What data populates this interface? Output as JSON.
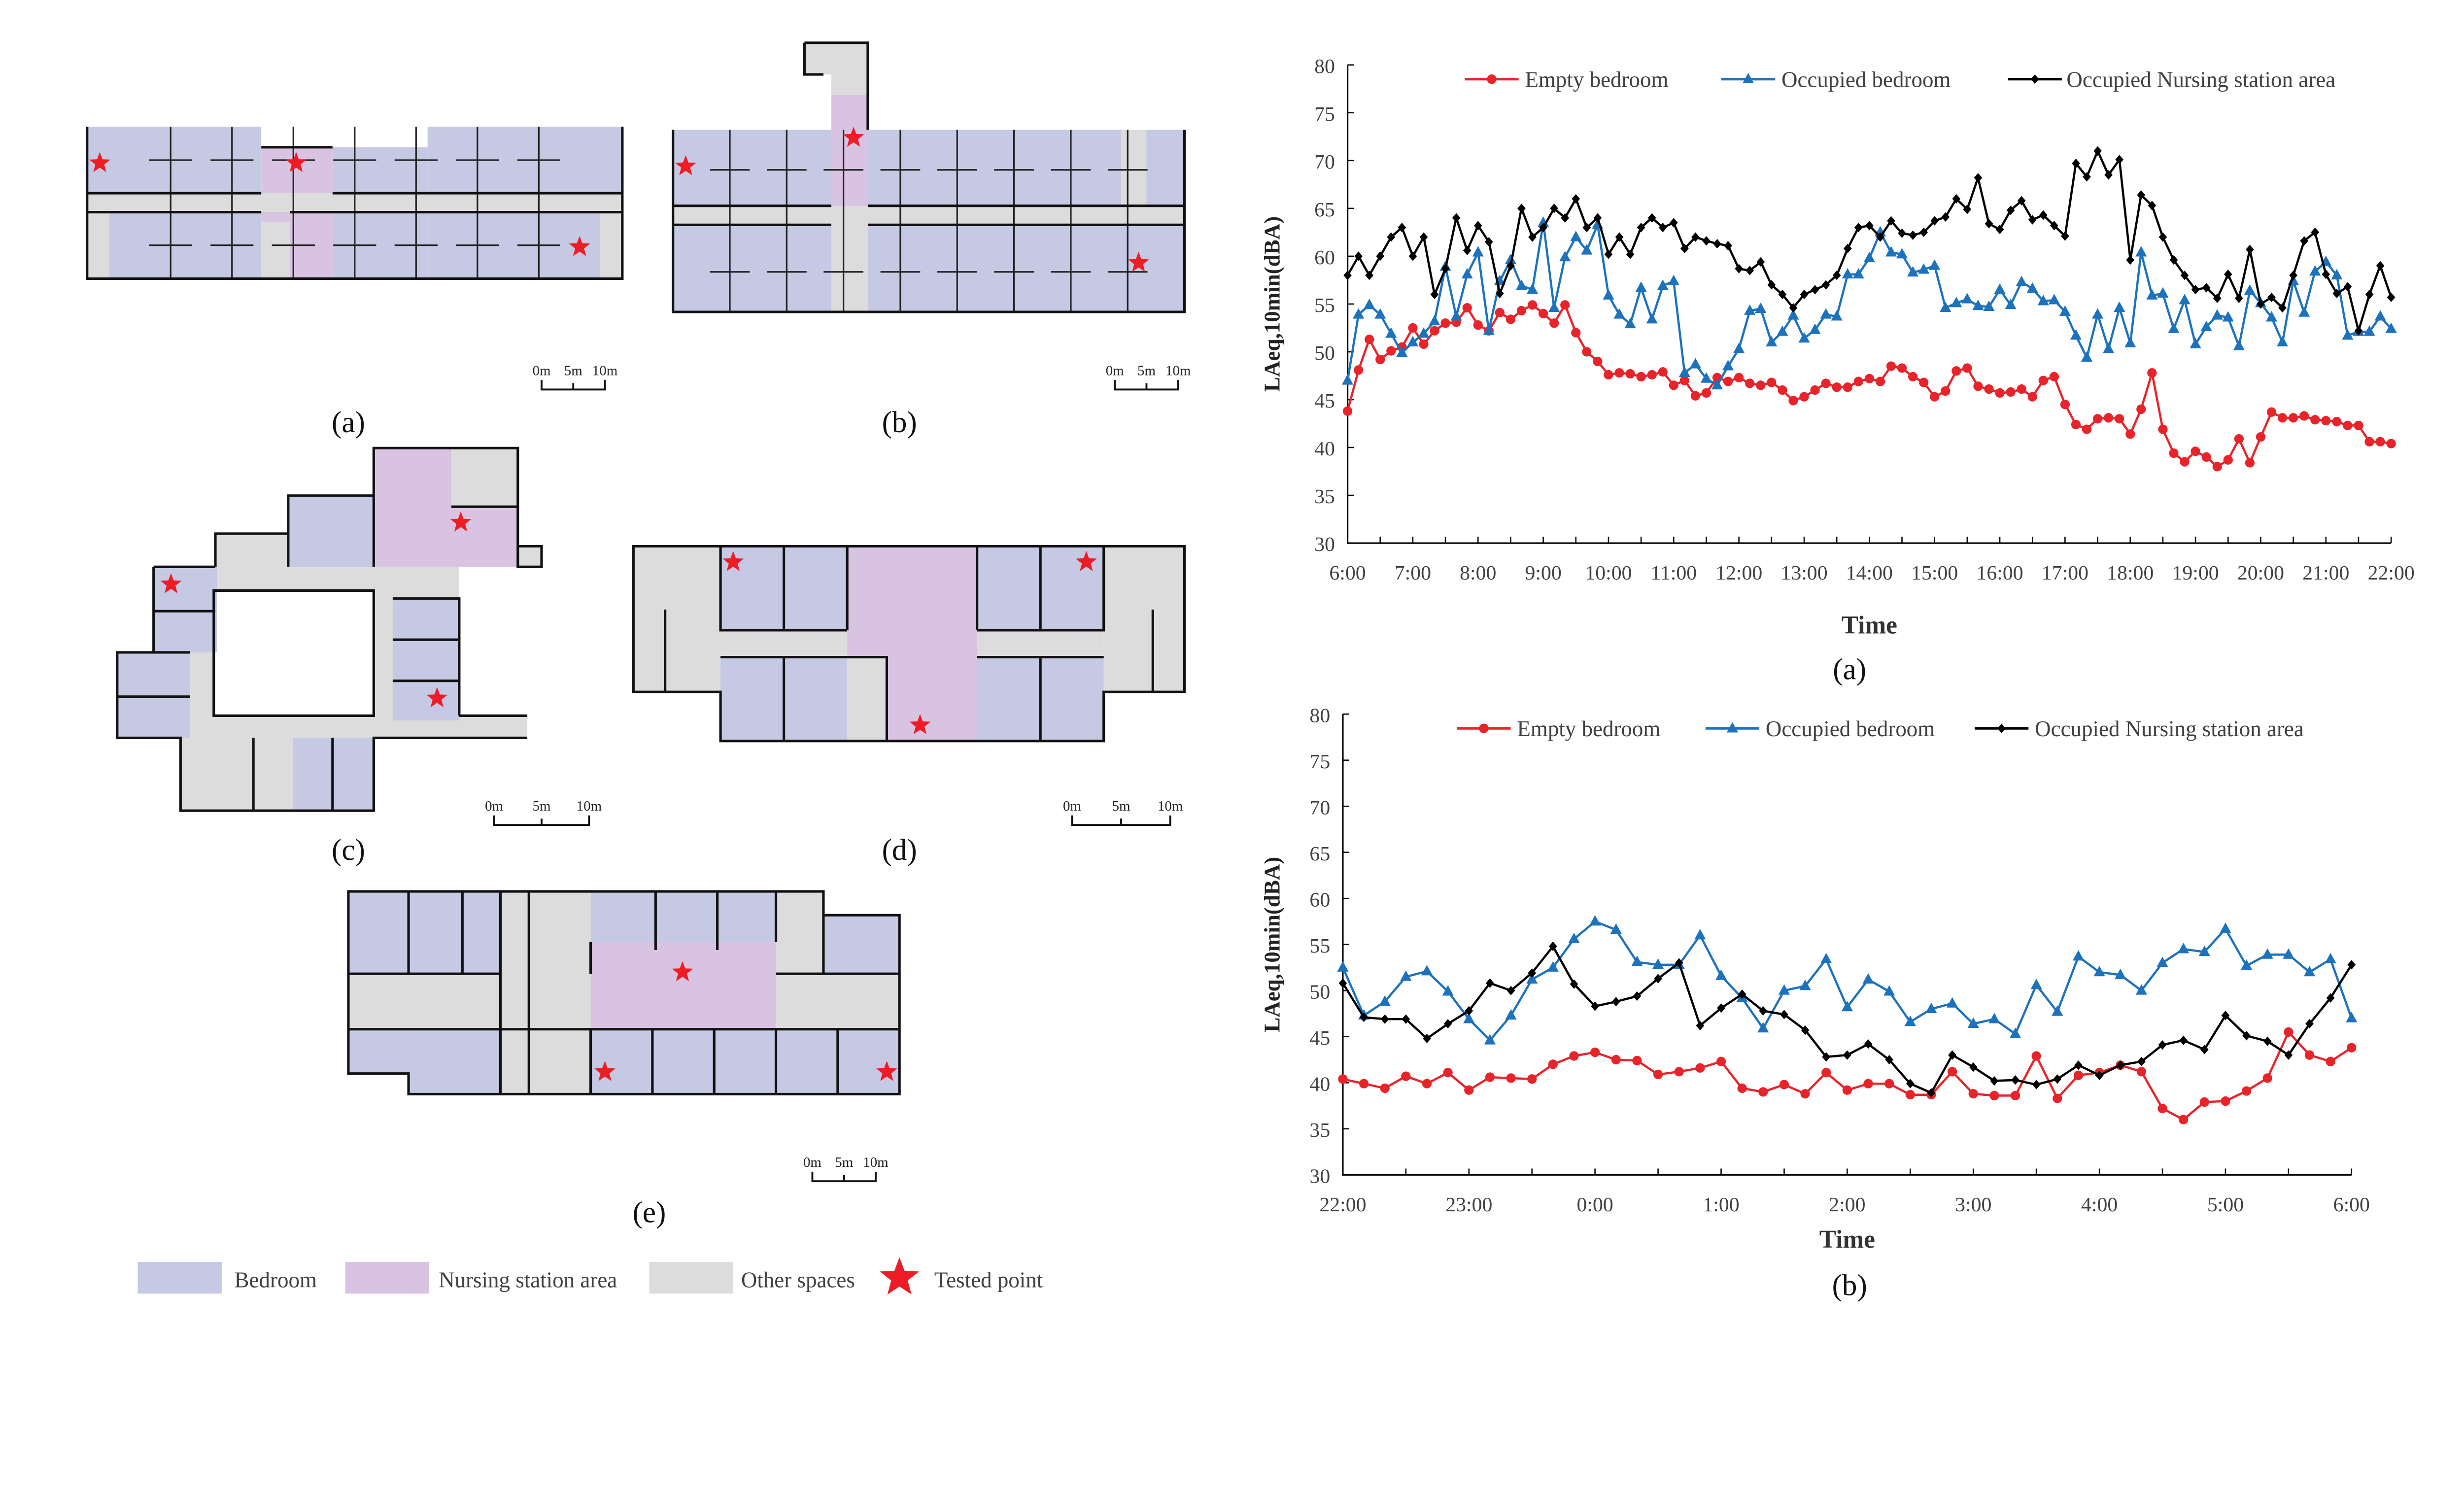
{
  "floor_plans": [
    {
      "label": "(a)",
      "scale_bar": [
        "0m",
        "5m",
        "10m"
      ]
    },
    {
      "label": "(b)",
      "scale_bar": [
        "0m",
        "5m",
        "10m"
      ]
    },
    {
      "label": "(c)",
      "scale_bar": [
        "0m",
        "5m",
        "10m"
      ]
    },
    {
      "label": "(d)",
      "scale_bar": [
        "0m",
        "5m",
        "10m"
      ]
    },
    {
      "label": "(e)",
      "scale_bar": [
        "0m",
        "5m",
        "10m"
      ]
    }
  ],
  "legend": {
    "bedroom": "Bedroom",
    "nursing": "Nursing station area",
    "other": "Other spaces",
    "tested": "Tested point"
  },
  "colors": {
    "bedroom": "#c5c9e4",
    "nursing": "#d9c3e2",
    "other": "#dcdcdc",
    "tested_point": "#ee1c25",
    "empty_bedroom": "#e8232a",
    "occupied_bedroom": "#1c72bd",
    "nursing_station": "#000000"
  },
  "chart_data": [
    {
      "type": "line",
      "panel_label": "(a)",
      "title": "",
      "xlabel": "Time",
      "ylabel": "LAeq,10min(dBA)",
      "ylim": [
        30,
        80
      ],
      "yticks": [
        "30",
        "35",
        "40",
        "45",
        "50",
        "55",
        "60",
        "65",
        "70",
        "75",
        "80"
      ],
      "x_tick_labels": [
        "6:00",
        "7:00",
        "8:00",
        "9:00",
        "10:00",
        "11:00",
        "12:00",
        "13:00",
        "14:00",
        "15:00",
        "16:00",
        "17:00",
        "18:00",
        "19:00",
        "20:00",
        "21:00",
        "22:00"
      ],
      "x_start": "6:00",
      "x_end": "22:00",
      "interval_minutes": 10,
      "legend_placement": "top",
      "grid": false,
      "series": [
        {
          "name": "Empty bedroom",
          "color": "#e8232a",
          "marker": "circle",
          "values": [
            43.8,
            48.1,
            51.3,
            49.2,
            50.1,
            50.5,
            52.5,
            50.8,
            52.2,
            53,
            53.1,
            54.6,
            52.8,
            52.2,
            54.1,
            53.4,
            54.3,
            54.9,
            54,
            53,
            54.9,
            52,
            50,
            49,
            47.6,
            47.8,
            47.7,
            47.4,
            47.6,
            47.9,
            46.5,
            47,
            45.4,
            45.7,
            47.3,
            46.9,
            47.3,
            46.7,
            46.5,
            46.8,
            46,
            44.9,
            45.3,
            46,
            46.7,
            46.3,
            46.3,
            46.9,
            47.2,
            46.9,
            48.5,
            48.3,
            47.4,
            46.8,
            45.3,
            45.9,
            48,
            48.3,
            46.4,
            46.1,
            45.7,
            45.8,
            46.1,
            45.3,
            47,
            47.4,
            44.5,
            42.4,
            41.9,
            43,
            43.1,
            43,
            41.4,
            44,
            47.8,
            41.9,
            39.4,
            38.5,
            39.6,
            39,
            38,
            38.7,
            40.9,
            38.4,
            41.1,
            43.7,
            43.1,
            43.1,
            43.3,
            42.9,
            42.8,
            42.7,
            42.3,
            42.3,
            40.6,
            40.6,
            40.4
          ]
        },
        {
          "name": "Occupied bedroom",
          "color": "#1c72bd",
          "marker": "triangle",
          "values": [
            47,
            53.9,
            54.9,
            53.9,
            51.9,
            49.9,
            51,
            51.9,
            53.2,
            58.9,
            53.7,
            58.1,
            60.4,
            52.2,
            57.4,
            59.6,
            56.9,
            56.5,
            63.5,
            54.6,
            59.9,
            62,
            60.6,
            63.3,
            55.9,
            53.9,
            52.9,
            56.7,
            53.4,
            56.9,
            57.4,
            47.8,
            48.7,
            47.2,
            46.5,
            48.5,
            50.3,
            54.3,
            54.5,
            51,
            52.1,
            53.8,
            51.4,
            52.3,
            53.9,
            53.7,
            58.1,
            58.1,
            59.8,
            62.5,
            60.4,
            60.2,
            58.3,
            58.6,
            59,
            54.6,
            55.1,
            55.5,
            54.8,
            54.7,
            56.5,
            54.9,
            57.3,
            56.6,
            55.3,
            55.4,
            54.2,
            51.7,
            49.4,
            53.9,
            50.3,
            54.6,
            50.9,
            60.4,
            55.9,
            56.1,
            52.4,
            55.4,
            50.8,
            52.6,
            53.8,
            53.6,
            50.6,
            56.4,
            55.1,
            53.6,
            51,
            57.4,
            54.1,
            58.4,
            59.4,
            58,
            51.7,
            52.1,
            52.1,
            53.7,
            52.4
          ]
        },
        {
          "name": "Occupied Nursing station area",
          "color": "#000000",
          "marker": "diamond",
          "values": [
            58,
            60,
            58,
            60,
            62,
            63,
            60,
            62,
            56,
            58.7,
            64,
            60.6,
            63.2,
            61.5,
            56.1,
            59,
            65,
            62,
            63,
            65,
            64,
            66,
            63,
            64,
            60.2,
            62,
            60.2,
            63,
            64,
            63,
            63.5,
            60.8,
            62,
            61.6,
            61.3,
            61.1,
            58.7,
            58.5,
            59.4,
            57,
            56,
            54.6,
            56,
            56.5,
            57,
            58,
            60.8,
            63,
            63.2,
            62,
            63.7,
            62.4,
            62.2,
            62.5,
            63.7,
            64.1,
            66,
            64.9,
            68.2,
            63.4,
            62.8,
            64.8,
            65.8,
            63.8,
            64.3,
            63.2,
            62.1,
            69.7,
            68.3,
            71,
            68.5,
            70.1,
            59.6,
            66.4,
            65.3,
            62,
            59.6,
            58,
            56.5,
            56.7,
            55.6,
            58.1,
            55.6,
            60.7,
            55,
            55.7,
            54.6,
            58,
            61.6,
            62.5,
            58.1,
            56.1,
            56.8,
            52.2,
            56,
            59,
            55.7
          ]
        }
      ]
    },
    {
      "type": "line",
      "panel_label": "(b)",
      "title": "",
      "xlabel": "Time",
      "ylabel": "LAeq,10min(dBA)",
      "ylim": [
        30,
        80
      ],
      "yticks": [
        "30",
        "35",
        "40",
        "45",
        "50",
        "55",
        "60",
        "65",
        "70",
        "75",
        "80"
      ],
      "x_tick_labels": [
        "22:00",
        "23:00",
        "0:00",
        "1:00",
        "2:00",
        "3:00",
        "4:00",
        "5:00",
        "6:00"
      ],
      "x_start": "22:00",
      "x_end": "6:00",
      "interval_minutes": 10,
      "legend_placement": "top",
      "grid": false,
      "series": [
        {
          "name": "Empty bedroom",
          "color": "#e8232a",
          "marker": "circle",
          "values": [
            40.4,
            39.9,
            39.4,
            40.7,
            39.9,
            41.1,
            39.2,
            40.6,
            40.5,
            40.4,
            42,
            42.9,
            43.3,
            42.5,
            42.4,
            40.9,
            41.2,
            41.6,
            42.3,
            39.4,
            39,
            39.8,
            38.8,
            41.1,
            39.2,
            39.9,
            39.9,
            38.7,
            38.7,
            41.2,
            38.8,
            38.6,
            38.6,
            42.9,
            38.3,
            40.8,
            41.1,
            41.9,
            41.2,
            37.2,
            36,
            37.9,
            38,
            39.1,
            40.5,
            45.5,
            43,
            42.3,
            43.8
          ]
        },
        {
          "name": "Occupied bedroom",
          "color": "#1c72bd",
          "marker": "triangle",
          "values": [
            52.5,
            47.3,
            48.8,
            51.5,
            52.1,
            49.9,
            46.9,
            44.6,
            47.3,
            51.2,
            52.5,
            55.6,
            57.5,
            56.6,
            53.1,
            52.8,
            52.8,
            56,
            51.6,
            49.2,
            45.9,
            50,
            50.5,
            53.4,
            48.2,
            51.2,
            49.9,
            46.6,
            48,
            48.6,
            46.4,
            46.9,
            45.3,
            50.6,
            47.7,
            53.7,
            52,
            51.7,
            50,
            53,
            54.5,
            54.2,
            56.7,
            52.7,
            53.9,
            53.9,
            52,
            53.4,
            47
          ]
        },
        {
          "name": "Occupied Nursing station area",
          "color": "#000000",
          "marker": "diamond",
          "values": [
            50.8,
            47.1,
            46.9,
            46.9,
            44.8,
            46.4,
            47.8,
            50.8,
            50,
            51.9,
            54.8,
            50.7,
            48.3,
            48.8,
            49.4,
            51.3,
            53,
            46.2,
            48.1,
            49.6,
            47.8,
            47.4,
            45.7,
            42.8,
            43,
            44.2,
            42.5,
            39.9,
            38.9,
            43,
            41.7,
            40.2,
            40.3,
            39.8,
            40.4,
            41.9,
            40.8,
            41.9,
            42.3,
            44.1,
            44.6,
            43.6,
            47.3,
            45.1,
            44.5,
            43,
            46.4,
            49.2,
            52.8
          ]
        }
      ]
    }
  ]
}
